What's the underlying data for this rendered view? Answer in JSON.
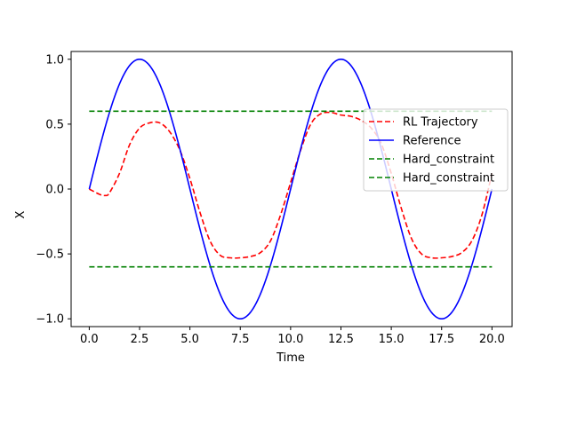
{
  "chart_data": {
    "type": "line",
    "xlabel": "Time",
    "ylabel": "X",
    "xlim": [
      -0.9,
      21.0
    ],
    "ylim": [
      -1.06,
      1.06
    ],
    "xticks": [
      0.0,
      2.5,
      5.0,
      7.5,
      10.0,
      12.5,
      15.0,
      17.5,
      20.0
    ],
    "xtick_labels": [
      "0.0",
      "2.5",
      "5.0",
      "7.5",
      "10.0",
      "12.5",
      "15.0",
      "17.5",
      "20.0"
    ],
    "yticks": [
      -1.0,
      -0.5,
      0.0,
      0.5,
      1.0
    ],
    "ytick_labels": [
      "−1.0",
      "−0.5",
      "0.0",
      "0.5",
      "1.0"
    ],
    "grid": false,
    "legend_position": "top-right",
    "series": [
      {
        "name": "RL Trajectory",
        "color": "#ff0000",
        "style": "dashed",
        "x": [
          0,
          0.5,
          0.8,
          1.0,
          1.5,
          2.0,
          2.5,
          3.0,
          3.5,
          4.0,
          4.5,
          5.0,
          5.5,
          6.0,
          6.5,
          7.0,
          7.5,
          8.0,
          8.5,
          9.0,
          9.5,
          10.0,
          10.5,
          11.0,
          11.5,
          12.0,
          12.5,
          13.0,
          13.5,
          14.0,
          14.5,
          15.0,
          15.5,
          16.0,
          16.5,
          17.0,
          17.5,
          18.0,
          18.5,
          19.0,
          19.5,
          20.0
        ],
        "y": [
          0.0,
          -0.04,
          -0.05,
          -0.03,
          0.12,
          0.34,
          0.47,
          0.51,
          0.51,
          0.44,
          0.3,
          0.08,
          -0.18,
          -0.4,
          -0.51,
          -0.53,
          -0.53,
          -0.52,
          -0.49,
          -0.4,
          -0.2,
          0.05,
          0.3,
          0.5,
          0.58,
          0.59,
          0.57,
          0.56,
          0.53,
          0.47,
          0.35,
          0.12,
          -0.15,
          -0.38,
          -0.5,
          -0.53,
          -0.53,
          -0.52,
          -0.49,
          -0.4,
          -0.2,
          0.12
        ]
      },
      {
        "name": "Reference",
        "color": "#0000ff",
        "style": "solid",
        "function": "sin(2*pi*t/10)",
        "x_range": [
          0,
          20
        ],
        "y": [
          0.0,
          0.31,
          0.59,
          0.81,
          0.95,
          1.0,
          0.95,
          0.81,
          0.59,
          0.31,
          0.0,
          -0.31,
          -0.59,
          -0.81,
          -0.95,
          -1.0,
          -0.95,
          -0.81,
          -0.59,
          -0.31,
          0.0,
          0.31,
          0.59,
          0.81,
          0.95,
          1.0,
          0.95,
          0.81,
          0.59,
          0.31,
          0.0,
          -0.31,
          -0.59,
          -0.81,
          -0.95,
          -1.0,
          -0.95,
          -0.81,
          -0.59,
          -0.31,
          0.0
        ]
      },
      {
        "name": "Hard_constraint",
        "color": "#008000",
        "style": "dashed",
        "x": [
          0,
          20
        ],
        "y": [
          0.6,
          0.6
        ]
      },
      {
        "name": "Hard_constraint",
        "color": "#008000",
        "style": "dashed",
        "x": [
          0,
          20
        ],
        "y": [
          -0.6,
          -0.6
        ]
      }
    ]
  }
}
